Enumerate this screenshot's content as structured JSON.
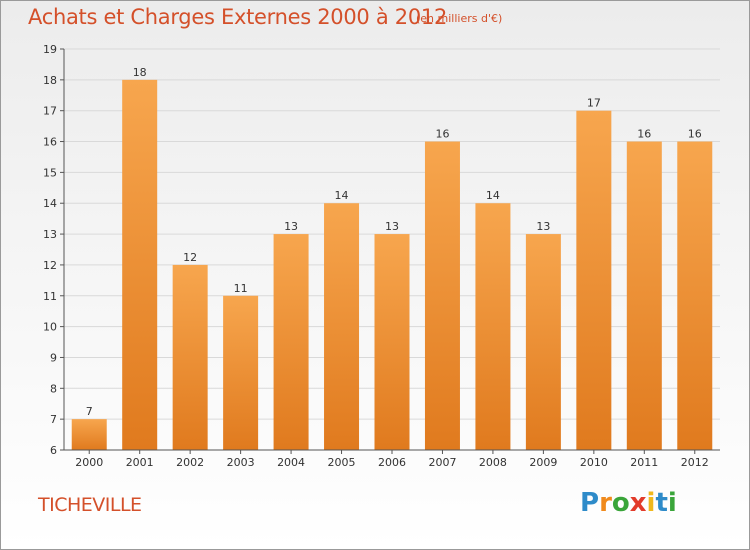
{
  "header": {
    "title": "Achats et Charges Externes 2000 à 2012",
    "subtitle": "(en milliers d'€)"
  },
  "footer": {
    "commune": "TICHEVILLE",
    "brand": "Proxiti",
    "brand_letters": [
      {
        "ch": "P",
        "color": "#2e8bc9"
      },
      {
        "ch": "r",
        "color": "#f08a1c"
      },
      {
        "ch": "o",
        "color": "#3aa53a"
      },
      {
        "ch": "x",
        "color": "#e23b2a"
      },
      {
        "ch": "i",
        "color": "#f0b81c"
      },
      {
        "ch": "t",
        "color": "#2e8bc9"
      },
      {
        "ch": "i",
        "color": "#3aa53a"
      }
    ]
  },
  "colors": {
    "title": "#d4502a",
    "bar_light": "#f7a64e",
    "bar_dark": "#e07a1e",
    "grid": "#d9d9d9"
  },
  "chart_data": {
    "type": "bar",
    "categories": [
      "2000",
      "2001",
      "2002",
      "2003",
      "2004",
      "2005",
      "2006",
      "2007",
      "2008",
      "2009",
      "2010",
      "2011",
      "2012"
    ],
    "values": [
      7,
      18,
      12,
      11,
      13,
      14,
      13,
      16,
      14,
      13,
      17,
      16,
      16
    ],
    "data_labels": [
      "7",
      "18",
      "12",
      "11",
      "13",
      "14",
      "13",
      "16",
      "14",
      "13",
      "17",
      "16",
      "16"
    ],
    "title": "Achats et Charges Externes 2000 à 2012",
    "subtitle": "(en milliers d'€)",
    "ylim": [
      6,
      19
    ],
    "yticks": [
      "6",
      "7",
      "8",
      "9",
      "10",
      "11",
      "12",
      "13",
      "14",
      "15",
      "16",
      "17",
      "18",
      "19"
    ],
    "grid": true,
    "legend": "none"
  }
}
